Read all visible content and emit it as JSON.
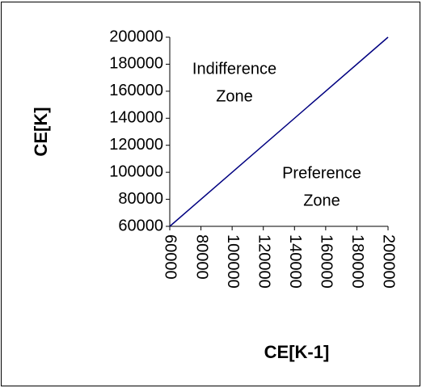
{
  "chart_data": {
    "type": "line",
    "x": [
      60000,
      200000
    ],
    "series": [
      {
        "color": "#000080",
        "values": [
          60000,
          200000
        ]
      }
    ],
    "xlim": [
      60000,
      200000
    ],
    "xticks": [
      60000,
      80000,
      100000,
      120000,
      140000,
      160000,
      180000,
      200000
    ],
    "ylim": [
      60000,
      200000
    ],
    "yticks": [
      60000,
      80000,
      100000,
      120000,
      140000,
      160000,
      180000,
      200000
    ],
    "xlabel": "CE[K-1]",
    "ylabel": "CE[K]",
    "annotations": [
      [
        "Indifference",
        "Zone"
      ],
      [
        "Preference",
        "Zone"
      ]
    ]
  }
}
